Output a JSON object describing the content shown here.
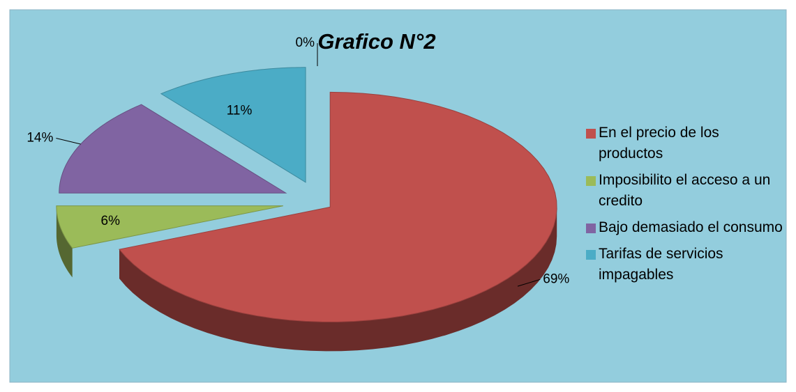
{
  "chart_data": {
    "type": "pie",
    "title": "Grafico N°2",
    "categories": [
      "En el precio de los productos",
      "Imposibilito el acceso a un credito",
      "Bajo demasiado el consumo",
      "Tarifas de servicios impagables",
      null
    ],
    "values": [
      69,
      6,
      14,
      11,
      0
    ],
    "value_labels": [
      "69%",
      "6%",
      "14%",
      "11%",
      "0%"
    ],
    "colors": [
      "#c0504d",
      "#9bbb59",
      "#8064a2",
      "#4bacc6",
      "#f79646"
    ],
    "legend": "right"
  }
}
